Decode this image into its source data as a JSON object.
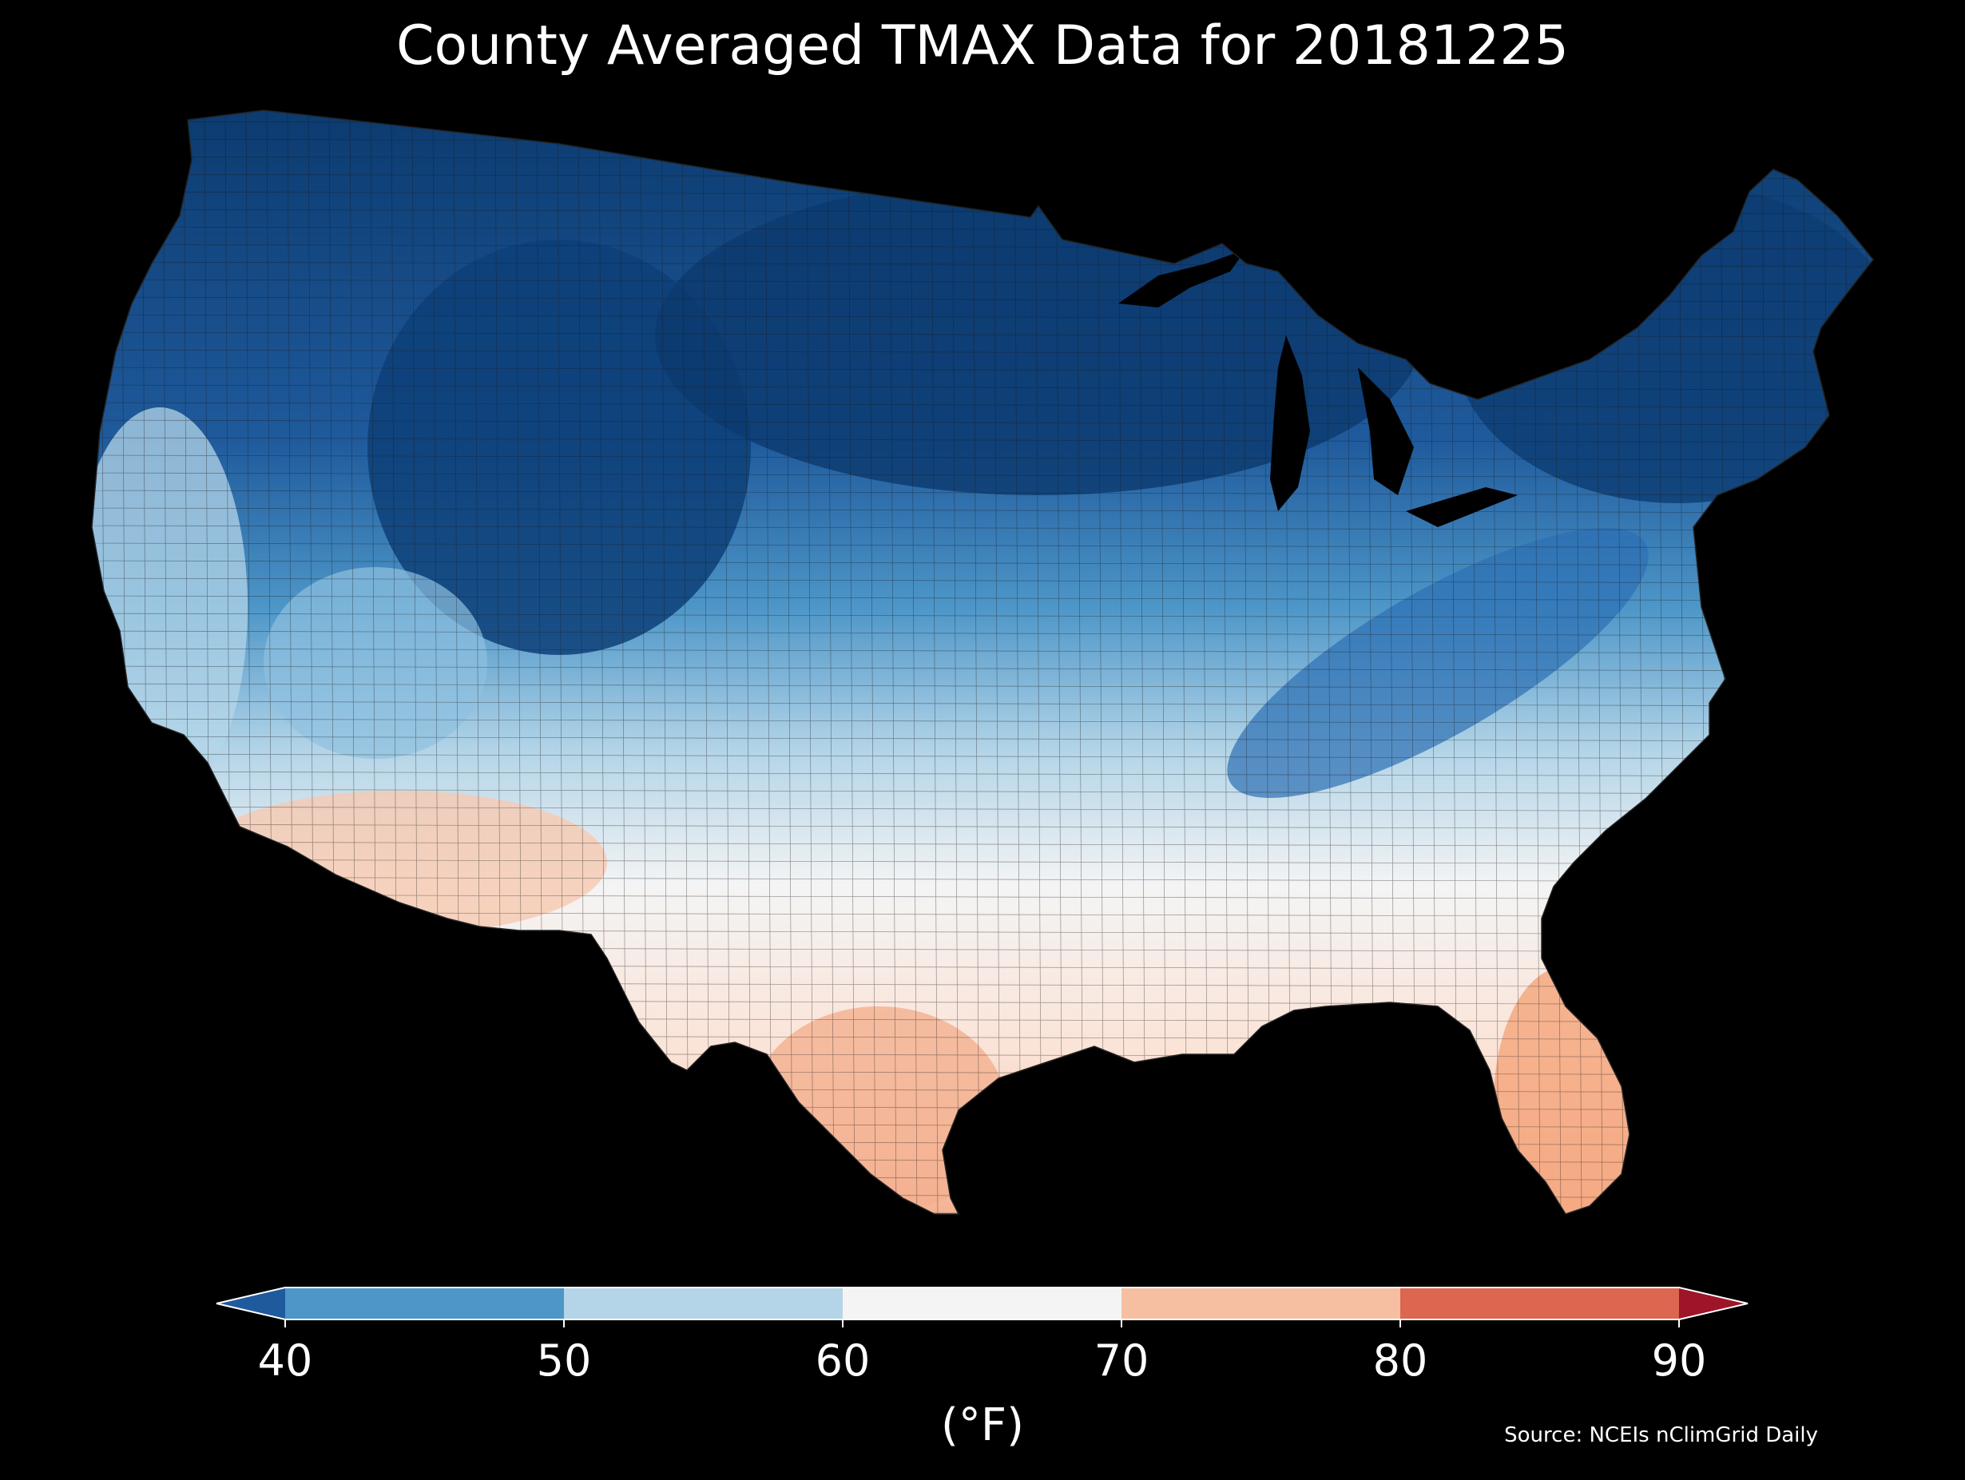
{
  "title": "County Averaged TMAX Data for 20181225",
  "source": "Source: NCEIs nClimGrid Daily",
  "colorbar": {
    "label": "(°F)",
    "ticks": [
      "40",
      "50",
      "60",
      "70",
      "80",
      "90"
    ],
    "bins": [
      {
        "range": "<40",
        "color": "#1f5a9c"
      },
      {
        "range": "40-50",
        "color": "#4d96c8"
      },
      {
        "range": "50-60",
        "color": "#b4d5e8"
      },
      {
        "range": "60-70",
        "color": "#f4f4f4"
      },
      {
        "range": "70-80",
        "color": "#f6bfa2"
      },
      {
        "range": "80-90",
        "color": "#dc6650"
      },
      {
        "range": ">90",
        "color": "#9e1428"
      }
    ]
  },
  "map": {
    "region": "Contiguous United States",
    "variable": "TMAX",
    "date": "20181225",
    "palette": {
      "very_cold": "#0b3a6e",
      "cold": "#1f5a9c",
      "cool": "#4d96c8",
      "mild": "#b4d5e8",
      "neutral": "#f4f4f4",
      "warm": "#f6bfa2"
    }
  }
}
